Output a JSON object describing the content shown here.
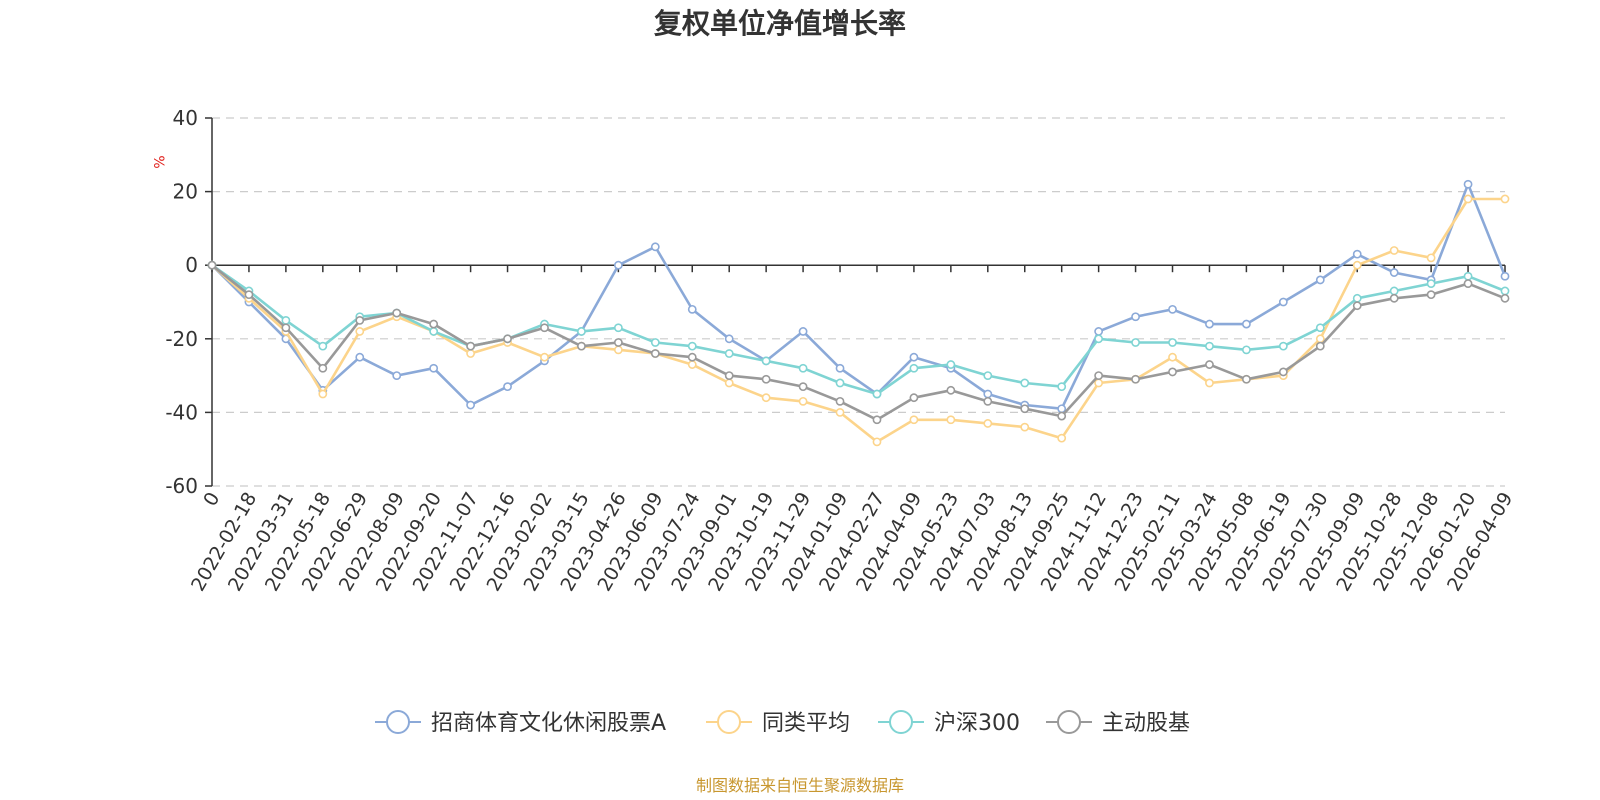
{
  "chart_data": {
    "type": "line",
    "title": "复权单位净值增长率",
    "y_unit": "%",
    "ylim": [
      -60,
      40
    ],
    "y_ticks": [
      40,
      20,
      0,
      -20,
      -40,
      -60
    ],
    "grid": true,
    "legend_position": "bottom",
    "source": "制图数据来自恒生聚源数据库",
    "x_tick_labels": [
      "0",
      "2022-02-18",
      "2022-03-31",
      "2022-05-18",
      "2022-06-29",
      "2022-08-09",
      "2022-09-20",
      "2022-11-07",
      "2022-12-16",
      "2023-02-02",
      "2023-03-15",
      "2023-04-26",
      "2023-06-09",
      "2023-07-24",
      "2023-09-01",
      "2023-10-19",
      "2023-11-29",
      "2024-01-09",
      "2024-02-27",
      "2024-04-09",
      "2024-05-23",
      "2024-07-03",
      "2024-08-13",
      "2024-09-25",
      "2024-11-12",
      "2024-12-23",
      "2025-02-11",
      "2025-03-24",
      "2025-05-08",
      "2025-06-19",
      "2025-07-30",
      "2025-09-09",
      "2025-10-28",
      "2025-12-08",
      "2026-01-20",
      "2026-04-09"
    ],
    "x": [
      "0",
      "2022-02-18",
      "2022-03-31",
      "2022-05-18",
      "2022-06-29",
      "2022-08-09",
      "2022-09-20",
      "2022-11-07",
      "2022-12-16",
      "2023-02-02",
      "2023-03-15",
      "2023-04-26",
      "2023-06-09",
      "2023-07-24",
      "2023-09-01",
      "2023-10-19",
      "2023-11-29",
      "2024-01-09",
      "2024-02-27",
      "2024-04-09",
      "2024-05-23",
      "2024-07-03",
      "2024-08-13",
      "2024-09-25",
      "2024-11-12",
      "2024-12-23",
      "2025-02-11",
      "2025-03-24",
      "2025-05-08",
      "2025-06-19",
      "2025-07-30",
      "2025-09-09",
      "2025-10-28",
      "2025-12-08",
      "2026-01-20",
      "2026-04-09"
    ],
    "series": [
      {
        "name": "招商体育文化休闲股票A",
        "color": "#8ba9d8",
        "values": [
          0,
          -10,
          -20,
          -34,
          -25,
          -30,
          -28,
          -38,
          -33,
          -26,
          -18,
          0,
          5,
          -12,
          -20,
          -26,
          -18,
          -28,
          -35,
          -25,
          -28,
          -35,
          -38,
          -39,
          -18,
          -14,
          -12,
          -16,
          -16,
          -10,
          -4,
          3,
          -2,
          -4,
          22,
          -3
        ]
      },
      {
        "name": "同类平均",
        "color": "#fcd48b",
        "values": [
          0,
          -9,
          -18,
          -35,
          -18,
          -14,
          -18,
          -24,
          -21,
          -25,
          -22,
          -23,
          -24,
          -27,
          -32,
          -36,
          -37,
          -40,
          -48,
          -42,
          -42,
          -43,
          -44,
          -47,
          -32,
          -31,
          -25,
          -32,
          -31,
          -30,
          -20,
          0,
          4,
          2,
          18,
          18
        ]
      },
      {
        "name": "沪深300",
        "color": "#7fd4d3",
        "values": [
          0,
          -7,
          -15,
          -22,
          -14,
          -13,
          -18,
          -22,
          -20,
          -16,
          -18,
          -17,
          -21,
          -22,
          -24,
          -26,
          -28,
          -32,
          -35,
          -28,
          -27,
          -30,
          -32,
          -33,
          -20,
          -21,
          -21,
          -22,
          -23,
          -22,
          -17,
          -9,
          -7,
          -5,
          -3,
          -7
        ]
      },
      {
        "name": "主动股基",
        "color": "#999999",
        "values": [
          0,
          -8,
          -17,
          -28,
          -15,
          -13,
          -16,
          -22,
          -20,
          -17,
          -22,
          -21,
          -24,
          -25,
          -30,
          -31,
          -33,
          -37,
          -42,
          -36,
          -34,
          -37,
          -39,
          -41,
          -30,
          -31,
          -29,
          -27,
          -31,
          -29,
          -22,
          -11,
          -9,
          -8,
          -5,
          -9
        ]
      }
    ]
  }
}
